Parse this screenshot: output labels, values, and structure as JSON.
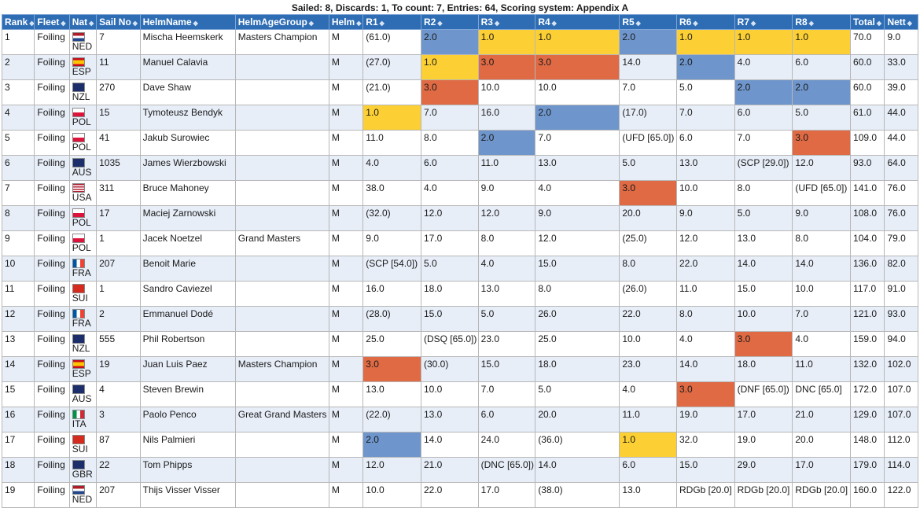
{
  "summary": "Sailed: 8, Discards: 1, To count: 7, Entries: 64, Scoring system: Appendix A",
  "columns": [
    "Rank",
    "Fleet",
    "Nat",
    "Sail No",
    "HelmName",
    "HelmAgeGroup",
    "Helm",
    "R1",
    "R2",
    "R3",
    "R4",
    "R5",
    "R6",
    "R7",
    "R8",
    "Total",
    "Nett"
  ],
  "colors": {
    "gold": "#fcd034",
    "blue": "#6f96cc",
    "orange": "#df6a44",
    "header": "#2e6db4"
  },
  "rows": [
    {
      "rank": "1",
      "fleet": "Foiling",
      "nat": "NED",
      "sail": "7",
      "name": "Mischa Heemskerk",
      "age": "Masters Champion",
      "helm": "M",
      "races": [
        "(61.0)",
        "2.0",
        "1.0",
        "1.0",
        "2.0",
        "1.0",
        "1.0",
        "1.0"
      ],
      "hl": [
        "",
        "blue",
        "gold",
        "gold",
        "blue",
        "gold",
        "gold",
        "gold"
      ],
      "total": "70.0",
      "nett": "9.0"
    },
    {
      "rank": "2",
      "fleet": "Foiling",
      "nat": "ESP",
      "sail": "11",
      "name": "Manuel Calavia",
      "age": "",
      "helm": "M",
      "races": [
        "(27.0)",
        "1.0",
        "3.0",
        "3.0",
        "14.0",
        "2.0",
        "4.0",
        "6.0"
      ],
      "hl": [
        "",
        "gold",
        "orange",
        "orange",
        "",
        "blue",
        "",
        ""
      ],
      "total": "60.0",
      "nett": "33.0"
    },
    {
      "rank": "3",
      "fleet": "Foiling",
      "nat": "NZL",
      "sail": "270",
      "name": "Dave Shaw",
      "age": "",
      "helm": "M",
      "races": [
        "(21.0)",
        "3.0",
        "10.0",
        "10.0",
        "7.0",
        "5.0",
        "2.0",
        "2.0"
      ],
      "hl": [
        "",
        "orange",
        "",
        "",
        "",
        "",
        "blue",
        "blue"
      ],
      "total": "60.0",
      "nett": "39.0"
    },
    {
      "rank": "4",
      "fleet": "Foiling",
      "nat": "POL",
      "sail": "15",
      "name": "Tymoteusz Bendyk",
      "age": "",
      "helm": "M",
      "races": [
        "1.0",
        "7.0",
        "16.0",
        "2.0",
        "(17.0)",
        "7.0",
        "6.0",
        "5.0"
      ],
      "hl": [
        "gold",
        "",
        "",
        "blue",
        "",
        "",
        "",
        ""
      ],
      "total": "61.0",
      "nett": "44.0"
    },
    {
      "rank": "5",
      "fleet": "Foiling",
      "nat": "POL",
      "sail": "41",
      "name": "Jakub Surowiec",
      "age": "",
      "helm": "M",
      "races": [
        "11.0",
        "8.0",
        "2.0",
        "7.0",
        "(UFD [65.0])",
        "6.0",
        "7.0",
        "3.0"
      ],
      "hl": [
        "",
        "",
        "blue",
        "",
        "",
        "",
        "",
        "orange"
      ],
      "total": "109.0",
      "nett": "44.0"
    },
    {
      "rank": "6",
      "fleet": "Foiling",
      "nat": "AUS",
      "sail": "1035",
      "name": "James Wierzbowski",
      "age": "",
      "helm": "M",
      "races": [
        "4.0",
        "6.0",
        "11.0",
        "13.0",
        "5.0",
        "13.0",
        "(SCP [29.0])",
        "12.0"
      ],
      "hl": [
        "",
        "",
        "",
        "",
        "",
        "",
        "",
        ""
      ],
      "total": "93.0",
      "nett": "64.0"
    },
    {
      "rank": "7",
      "fleet": "Foiling",
      "nat": "USA",
      "sail": "311",
      "name": "Bruce Mahoney",
      "age": "",
      "helm": "M",
      "races": [
        "38.0",
        "4.0",
        "9.0",
        "4.0",
        "3.0",
        "10.0",
        "8.0",
        "(UFD [65.0])"
      ],
      "hl": [
        "",
        "",
        "",
        "",
        "orange",
        "",
        "",
        ""
      ],
      "total": "141.0",
      "nett": "76.0"
    },
    {
      "rank": "8",
      "fleet": "Foiling",
      "nat": "POL",
      "sail": "17",
      "name": "Maciej Zarnowski",
      "age": "",
      "helm": "M",
      "races": [
        "(32.0)",
        "12.0",
        "12.0",
        "9.0",
        "20.0",
        "9.0",
        "5.0",
        "9.0"
      ],
      "hl": [
        "",
        "",
        "",
        "",
        "",
        "",
        "",
        ""
      ],
      "total": "108.0",
      "nett": "76.0"
    },
    {
      "rank": "9",
      "fleet": "Foiling",
      "nat": "POL",
      "sail": "1",
      "name": "Jacek Noetzel",
      "age": "Grand Masters",
      "helm": "M",
      "races": [
        "9.0",
        "17.0",
        "8.0",
        "12.0",
        "(25.0)",
        "12.0",
        "13.0",
        "8.0"
      ],
      "hl": [
        "",
        "",
        "",
        "",
        "",
        "",
        "",
        ""
      ],
      "total": "104.0",
      "nett": "79.0"
    },
    {
      "rank": "10",
      "fleet": "Foiling",
      "nat": "FRA",
      "sail": "207",
      "name": "Benoit Marie",
      "age": "",
      "helm": "M",
      "races": [
        "(SCP [54.0])",
        "5.0",
        "4.0",
        "15.0",
        "8.0",
        "22.0",
        "14.0",
        "14.0"
      ],
      "hl": [
        "",
        "",
        "",
        "",
        "",
        "",
        "",
        ""
      ],
      "total": "136.0",
      "nett": "82.0"
    },
    {
      "rank": "11",
      "fleet": "Foiling",
      "nat": "SUI",
      "sail": "1",
      "name": "Sandro Caviezel",
      "age": "",
      "helm": "M",
      "races": [
        "16.0",
        "18.0",
        "13.0",
        "8.0",
        "(26.0)",
        "11.0",
        "15.0",
        "10.0"
      ],
      "hl": [
        "",
        "",
        "",
        "",
        "",
        "",
        "",
        ""
      ],
      "total": "117.0",
      "nett": "91.0"
    },
    {
      "rank": "12",
      "fleet": "Foiling",
      "nat": "FRA",
      "sail": "2",
      "name": "Emmanuel Dodé",
      "age": "",
      "helm": "M",
      "races": [
        "(28.0)",
        "15.0",
        "5.0",
        "26.0",
        "22.0",
        "8.0",
        "10.0",
        "7.0"
      ],
      "hl": [
        "",
        "",
        "",
        "",
        "",
        "",
        "",
        ""
      ],
      "total": "121.0",
      "nett": "93.0"
    },
    {
      "rank": "13",
      "fleet": "Foiling",
      "nat": "NZL",
      "sail": "555",
      "name": "Phil Robertson",
      "age": "",
      "helm": "M",
      "races": [
        "25.0",
        "(DSQ [65.0])",
        "23.0",
        "25.0",
        "10.0",
        "4.0",
        "3.0",
        "4.0"
      ],
      "hl": [
        "",
        "",
        "",
        "",
        "",
        "",
        "orange",
        ""
      ],
      "total": "159.0",
      "nett": "94.0"
    },
    {
      "rank": "14",
      "fleet": "Foiling",
      "nat": "ESP",
      "sail": "19",
      "name": "Juan Luis Paez",
      "age": "Masters Champion",
      "helm": "M",
      "races": [
        "3.0",
        "(30.0)",
        "15.0",
        "18.0",
        "23.0",
        "14.0",
        "18.0",
        "11.0"
      ],
      "hl": [
        "orange",
        "",
        "",
        "",
        "",
        "",
        "",
        ""
      ],
      "total": "132.0",
      "nett": "102.0"
    },
    {
      "rank": "15",
      "fleet": "Foiling",
      "nat": "AUS",
      "sail": "4",
      "name": "Steven Brewin",
      "age": "",
      "helm": "M",
      "races": [
        "13.0",
        "10.0",
        "7.0",
        "5.0",
        "4.0",
        "3.0",
        "(DNF [65.0])",
        "DNC [65.0]"
      ],
      "hl": [
        "",
        "",
        "",
        "",
        "",
        "orange",
        "",
        ""
      ],
      "total": "172.0",
      "nett": "107.0"
    },
    {
      "rank": "16",
      "fleet": "Foiling",
      "nat": "ITA",
      "sail": "3",
      "name": "Paolo Penco",
      "age": "Great Grand Masters",
      "helm": "M",
      "races": [
        "(22.0)",
        "13.0",
        "6.0",
        "20.0",
        "11.0",
        "19.0",
        "17.0",
        "21.0"
      ],
      "hl": [
        "",
        "",
        "",
        "",
        "",
        "",
        "",
        ""
      ],
      "total": "129.0",
      "nett": "107.0"
    },
    {
      "rank": "17",
      "fleet": "Foiling",
      "nat": "SUI",
      "sail": "87",
      "name": "Nils Palmieri",
      "age": "",
      "helm": "M",
      "races": [
        "2.0",
        "14.0",
        "24.0",
        "(36.0)",
        "1.0",
        "32.0",
        "19.0",
        "20.0"
      ],
      "hl": [
        "blue",
        "",
        "",
        "",
        "gold",
        "",
        "",
        ""
      ],
      "total": "148.0",
      "nett": "112.0"
    },
    {
      "rank": "18",
      "fleet": "Foiling",
      "nat": "GBR",
      "sail": "22",
      "name": "Tom Phipps",
      "age": "",
      "helm": "M",
      "races": [
        "12.0",
        "21.0",
        "(DNC [65.0])",
        "14.0",
        "6.0",
        "15.0",
        "29.0",
        "17.0"
      ],
      "hl": [
        "",
        "",
        "",
        "",
        "",
        "",
        "",
        ""
      ],
      "total": "179.0",
      "nett": "114.0"
    },
    {
      "rank": "19",
      "fleet": "Foiling",
      "nat": "NED",
      "sail": "207",
      "name": "Thijs Visser Visser",
      "age": "",
      "helm": "M",
      "races": [
        "10.0",
        "22.0",
        "17.0",
        "(38.0)",
        "13.0",
        "RDGb [20.0]",
        "RDGb [20.0]",
        "RDGb [20.0]"
      ],
      "hl": [
        "",
        "",
        "",
        "",
        "",
        "",
        "",
        ""
      ],
      "total": "160.0",
      "nett": "122.0"
    }
  ]
}
